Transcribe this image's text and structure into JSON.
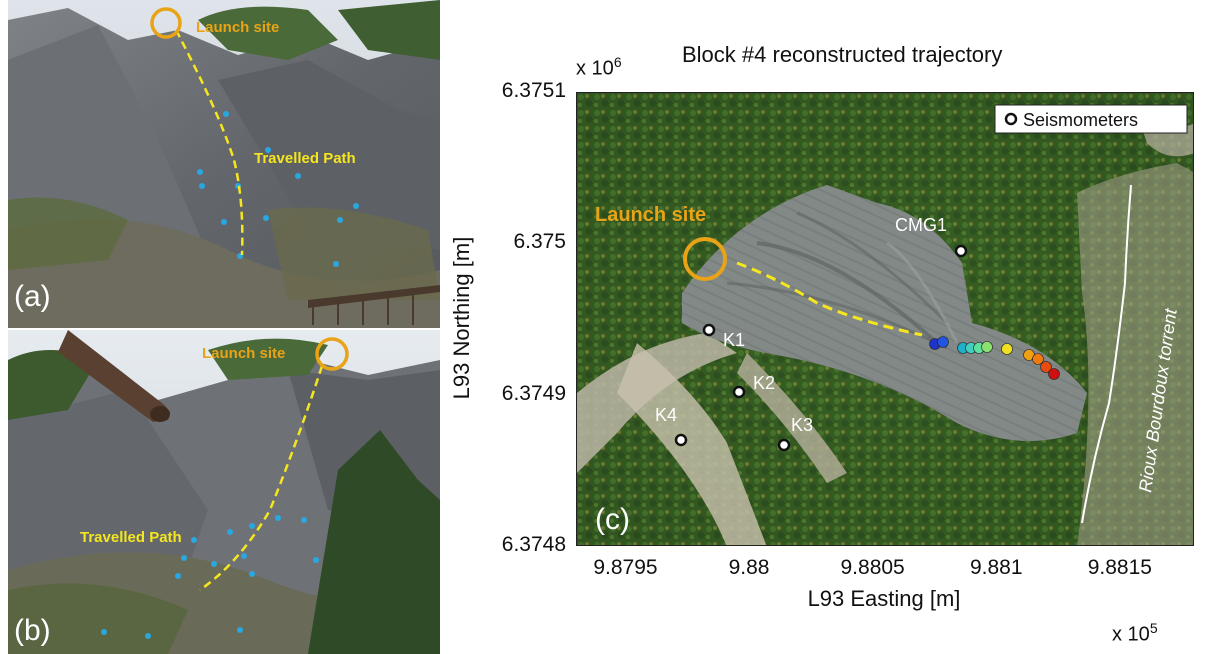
{
  "panel_a": {
    "label": "(a)",
    "launch_site": "Launch site",
    "travelled_path": "Travelled Path"
  },
  "panel_b": {
    "label": "(b)",
    "launch_site": "Launch site",
    "travelled_path": "Travelled Path"
  },
  "panel_c": {
    "label": "(c)",
    "launch_site": "Launch site",
    "legend": "Seismometers",
    "torrent_label": "Rioux Bourdoux torrent",
    "stations": [
      "CMG1",
      "K1",
      "K2",
      "K3",
      "K4"
    ]
  },
  "chart_data": {
    "type": "scatter",
    "title": "Block #4 reconstructed trajectory",
    "xlabel": "L93 Easting [m]",
    "ylabel": "L93 Northing [m]",
    "x_exponent": "x 10",
    "x_exponent_power": "5",
    "y_exponent": "x 10",
    "y_exponent_power": "6",
    "xlim": [
      9.8793,
      9.8818
    ],
    "ylim": [
      6.3748,
      6.3751
    ],
    "x_ticks": [
      "9.8795",
      "9.88",
      "9.8805",
      "9.881",
      "9.8815"
    ],
    "y_ticks": [
      "6.3751",
      "6.375",
      "6.3749",
      "6.3748"
    ],
    "colors": {
      "launch": "#e8a317",
      "path": "#f5e61f",
      "torrent": "#ffffff"
    }
  }
}
